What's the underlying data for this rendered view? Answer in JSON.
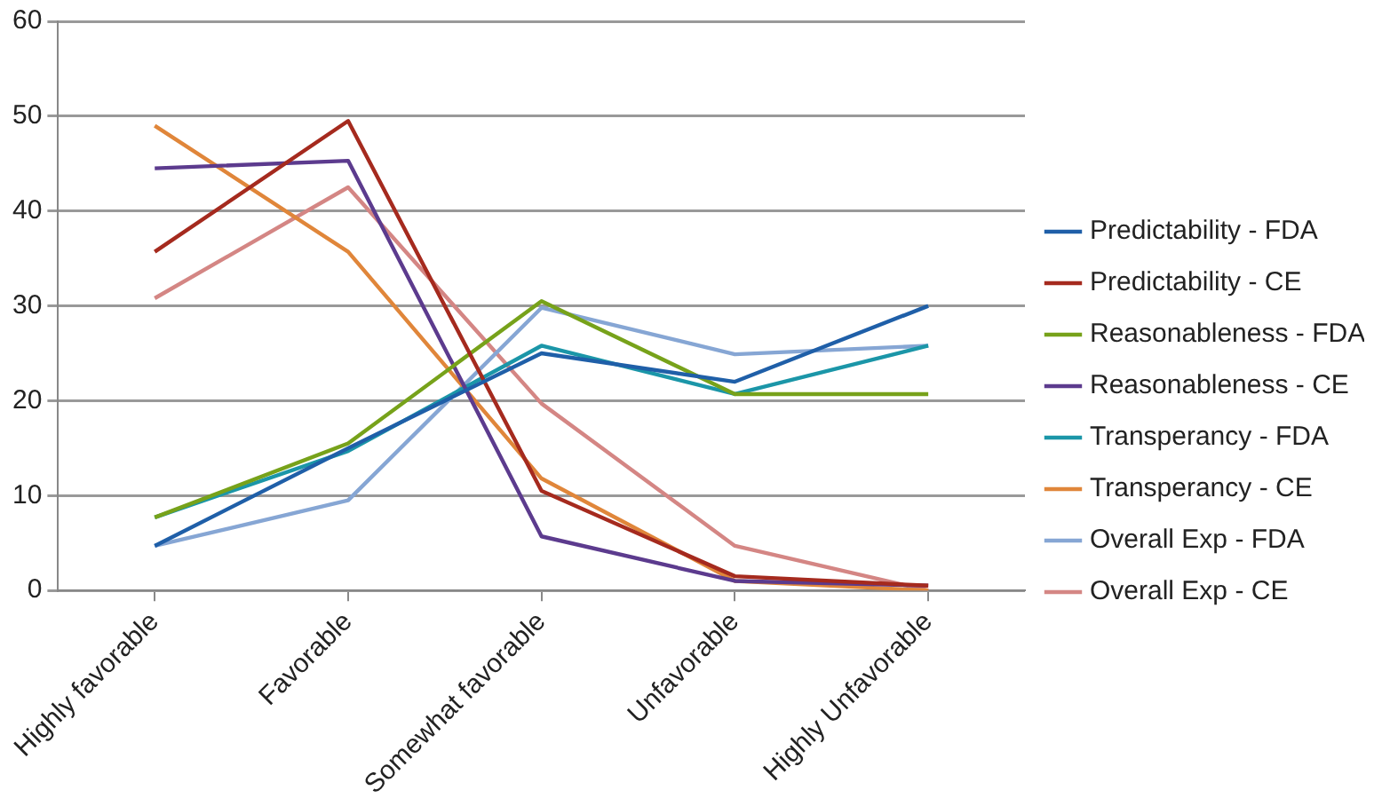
{
  "chart_data": {
    "type": "line",
    "categories": [
      "Highly favorable",
      "Favorable",
      "Somewhat favorable",
      "Unfavorable",
      "Highly Unfavorable"
    ],
    "series": [
      {
        "name": "Predictability - FDA",
        "color": "#1f5fa8",
        "values": [
          4.7,
          15,
          25,
          22,
          30
        ]
      },
      {
        "name": "Predictability - CE",
        "color": "#a52a1e",
        "values": [
          35.7,
          49.5,
          10.5,
          1.5,
          0.5
        ]
      },
      {
        "name": "Reasonableness - FDA",
        "color": "#77a21a",
        "values": [
          7.7,
          15.5,
          30.5,
          20.7,
          20.7
        ]
      },
      {
        "name": "Reasonableness - CE",
        "color": "#5c3b8e",
        "values": [
          44.5,
          45.3,
          5.7,
          1,
          0.5
        ]
      },
      {
        "name": "Transperancy - FDA",
        "color": "#1b96a8",
        "values": [
          7.7,
          14.7,
          25.8,
          20.7,
          25.8
        ]
      },
      {
        "name": "Transperancy - CE",
        "color": "#e0863a",
        "values": [
          49,
          35.7,
          11.8,
          1,
          0
        ]
      },
      {
        "name": "Overall Exp - FDA",
        "color": "#86a6d4",
        "values": [
          4.7,
          9.5,
          29.8,
          24.9,
          25.8
        ]
      },
      {
        "name": "Overall Exp - CE",
        "color": "#d48684",
        "values": [
          30.8,
          42.5,
          19.7,
          4.7,
          0
        ]
      }
    ],
    "ylim": [
      0,
      60
    ],
    "yticks": [
      0,
      10,
      20,
      30,
      40,
      50,
      60
    ],
    "grid": "y",
    "legend": "right",
    "marker": "none",
    "line_style": "solid"
  }
}
